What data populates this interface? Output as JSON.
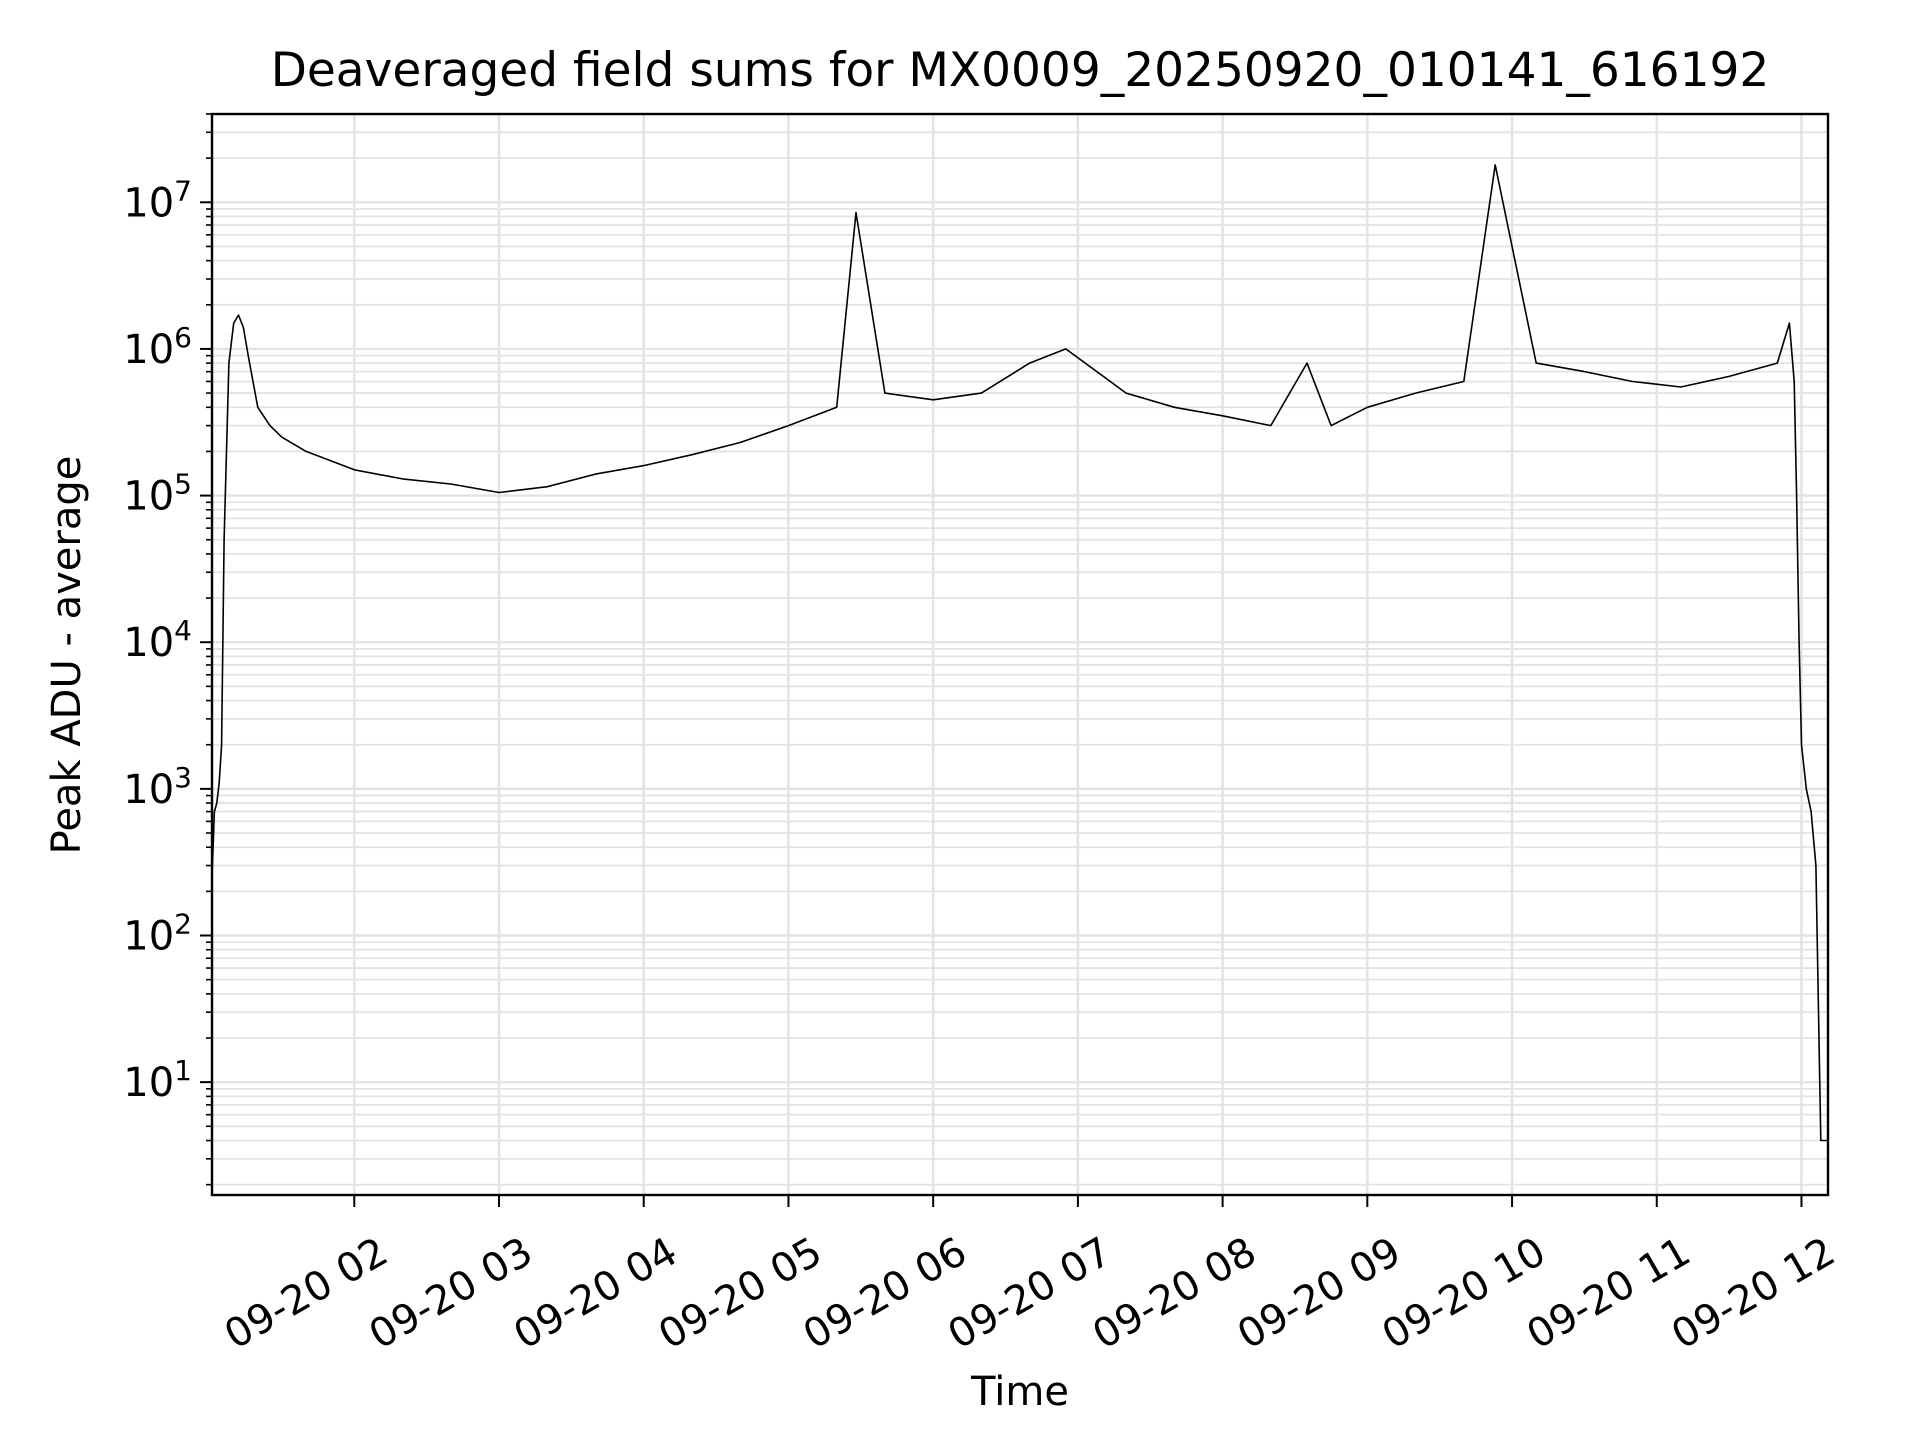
{
  "chart_data": {
    "type": "line",
    "title": "Deaveraged field sums for MX0009_20250920_010141_616192",
    "xlabel": "Time",
    "ylabel": "Peak ADU - average",
    "yscale": "log",
    "ylim": [
      1.7,
      40000000
    ],
    "xlim": [
      "2025-09-20 01:01",
      "2025-09-20 12:11"
    ],
    "grid": true,
    "line_color": "#000000",
    "x_ticks": [
      "09-20 02",
      "09-20 03",
      "09-20 04",
      "09-20 05",
      "09-20 06",
      "09-20 07",
      "09-20 08",
      "09-20 09",
      "09-20 10",
      "09-20 11",
      "09-20 12"
    ],
    "y_ticks": [
      {
        "value": 10,
        "base": "10",
        "exp": "1"
      },
      {
        "value": 100,
        "base": "10",
        "exp": "2"
      },
      {
        "value": 1000,
        "base": "10",
        "exp": "3"
      },
      {
        "value": 10000,
        "base": "10",
        "exp": "4"
      },
      {
        "value": 100000,
        "base": "10",
        "exp": "5"
      },
      {
        "value": 1000000,
        "base": "10",
        "exp": "6"
      },
      {
        "value": 10000000,
        "base": "10",
        "exp": "7"
      }
    ],
    "series": [
      {
        "x": [
          "2025-09-20 01:01",
          "2025-09-20 01:02",
          "2025-09-20 01:03",
          "2025-09-20 01:04",
          "2025-09-20 01:05",
          "2025-09-20 01:06",
          "2025-09-20 01:08",
          "2025-09-20 01:10",
          "2025-09-20 01:12",
          "2025-09-20 01:14",
          "2025-09-20 01:16",
          "2025-09-20 01:18",
          "2025-09-20 01:20",
          "2025-09-20 01:25",
          "2025-09-20 01:30",
          "2025-09-20 01:40",
          "2025-09-20 02:00",
          "2025-09-20 02:20",
          "2025-09-20 02:40",
          "2025-09-20 03:00",
          "2025-09-20 03:20",
          "2025-09-20 03:40",
          "2025-09-20 04:00",
          "2025-09-20 04:20",
          "2025-09-20 04:40",
          "2025-09-20 05:00",
          "2025-09-20 05:20",
          "2025-09-20 05:28",
          "2025-09-20 05:40",
          "2025-09-20 06:00",
          "2025-09-20 06:20",
          "2025-09-20 06:40",
          "2025-09-20 06:55",
          "2025-09-20 07:20",
          "2025-09-20 07:40",
          "2025-09-20 08:00",
          "2025-09-20 08:20",
          "2025-09-20 08:35",
          "2025-09-20 08:45",
          "2025-09-20 09:00",
          "2025-09-20 09:20",
          "2025-09-20 09:40",
          "2025-09-20 09:53",
          "2025-09-20 10:10",
          "2025-09-20 10:30",
          "2025-09-20 10:50",
          "2025-09-20 11:10",
          "2025-09-20 11:30",
          "2025-09-20 11:50",
          "2025-09-20 11:55",
          "2025-09-20 11:57",
          "2025-09-20 11:58",
          "2025-09-20 11:59",
          "2025-09-20 12:00",
          "2025-09-20 12:02",
          "2025-09-20 12:04",
          "2025-09-20 12:06",
          "2025-09-20 12:08",
          "2025-09-20 12:10",
          "2025-09-20 12:11"
        ],
        "y": [
          250,
          700,
          800,
          1100,
          2000,
          50000,
          800000,
          1500000,
          1700000,
          1400000,
          900000,
          600000,
          400000,
          300000,
          250000,
          200000,
          150000,
          130000,
          120000,
          105000,
          115000,
          140000,
          160000,
          190000,
          230000,
          300000,
          400000,
          8500000,
          500000,
          450000,
          500000,
          800000,
          1000000,
          500000,
          400000,
          350000,
          300000,
          800000,
          300000,
          400000,
          500000,
          600000,
          18000000,
          800000,
          700000,
          600000,
          550000,
          650000,
          800000,
          1500000,
          600000,
          100000,
          10000,
          2000,
          1000,
          700,
          300,
          4,
          4,
          4
        ]
      }
    ]
  }
}
